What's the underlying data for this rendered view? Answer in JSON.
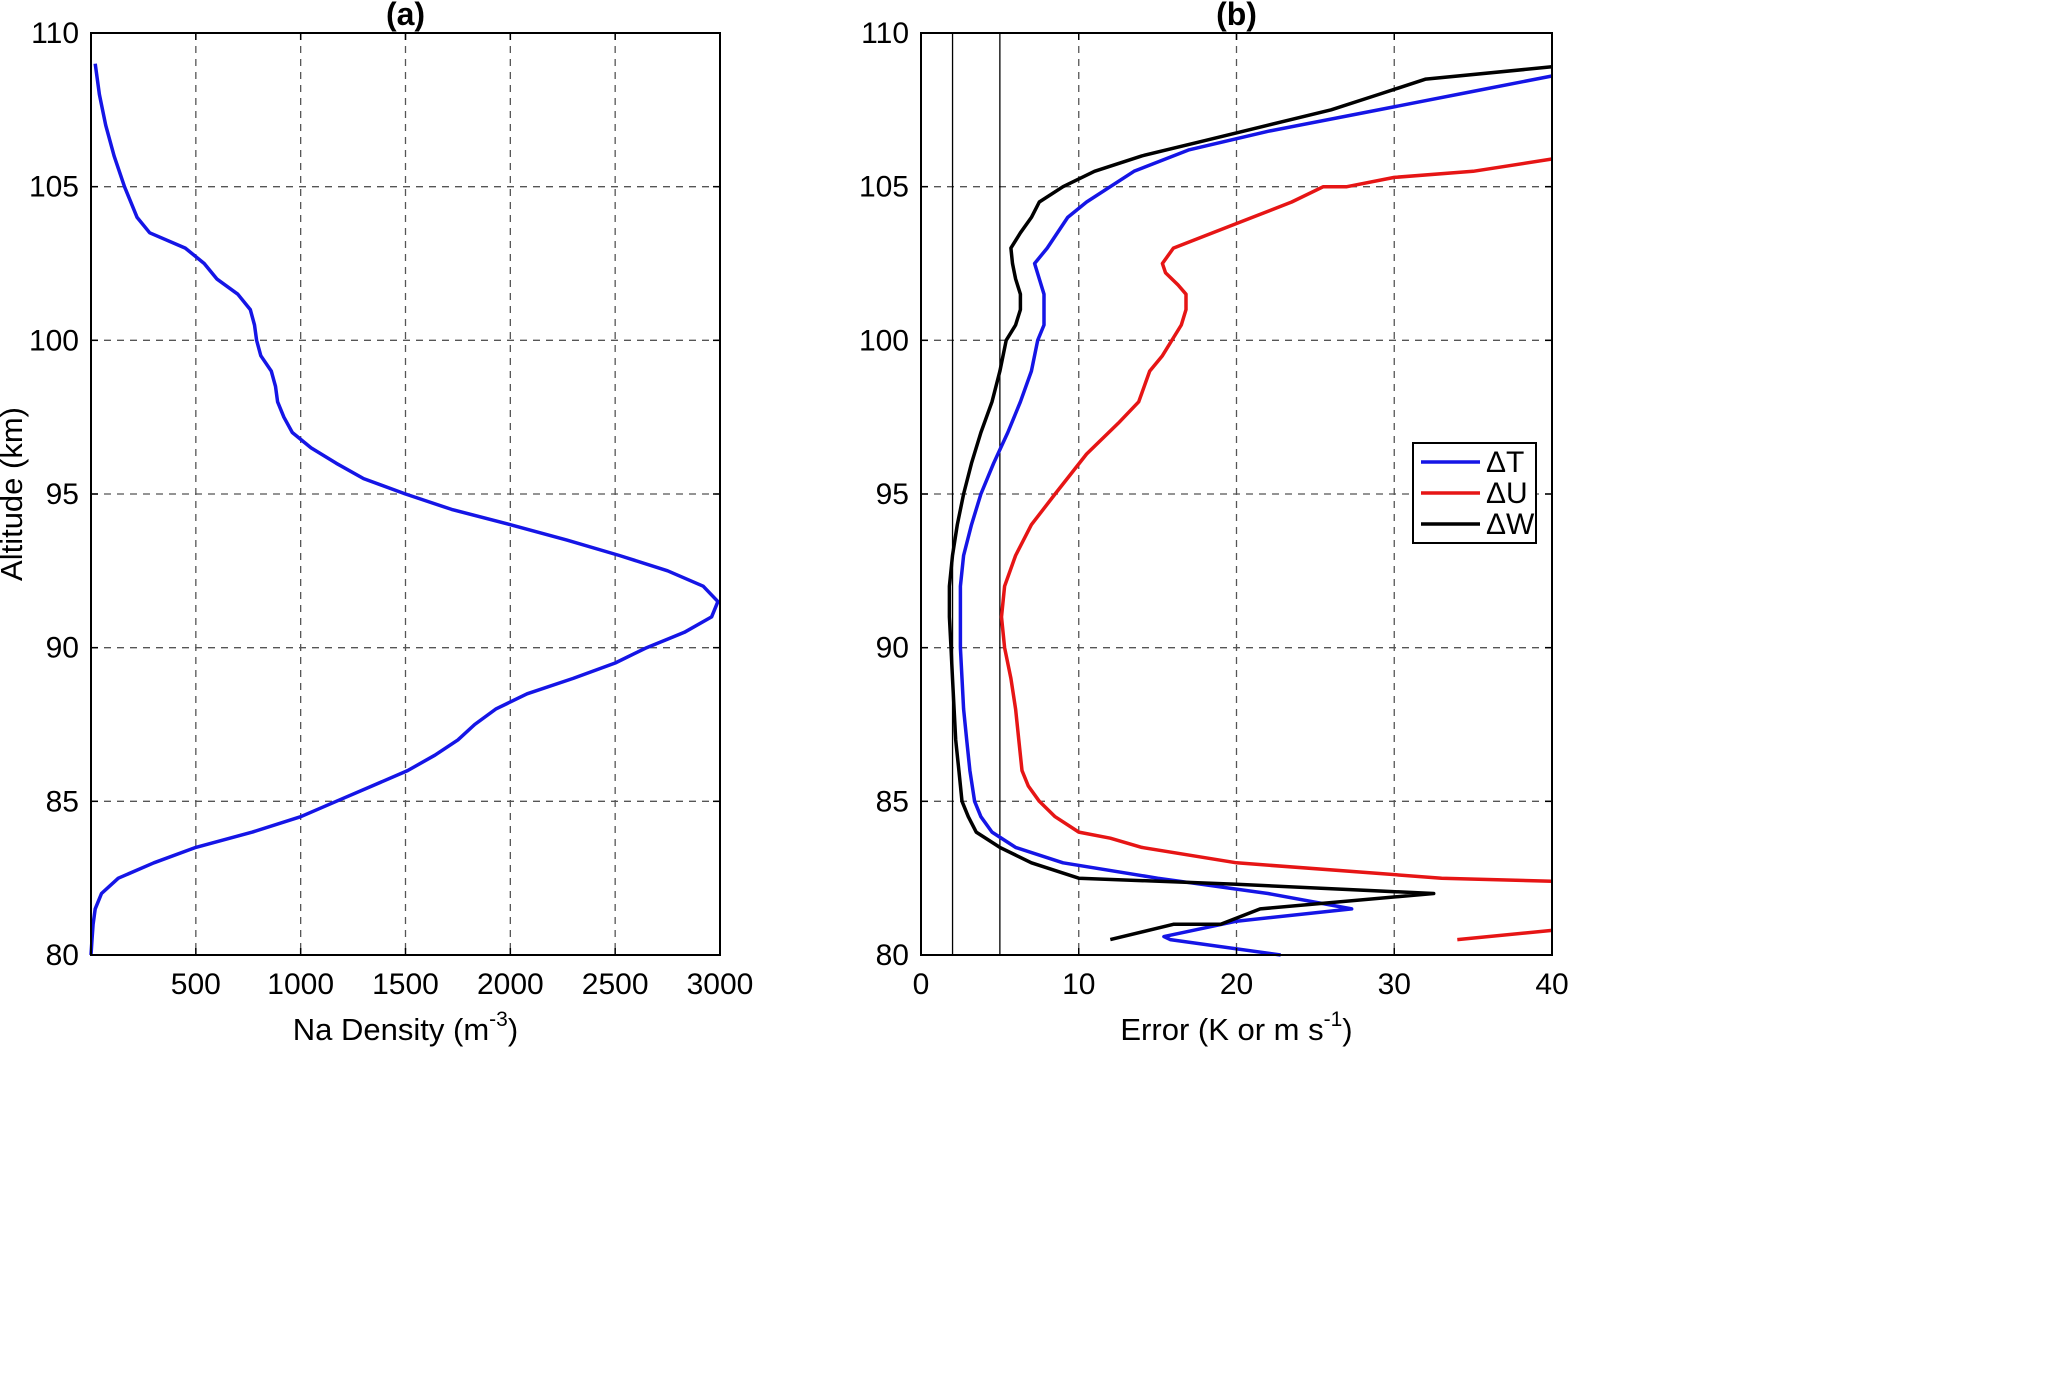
{
  "chart_data": [
    {
      "type": "line",
      "title": "(a)",
      "xlabel": "Na Density (m",
      "xlabel_sup": "-3",
      "xlabel_end": ")",
      "ylabel": "Altitude (km)",
      "xlim": [
        0,
        3000
      ],
      "ylim": [
        80,
        110
      ],
      "xticks": [
        500,
        1000,
        1500,
        2000,
        2500,
        3000
      ],
      "yticks": [
        80,
        85,
        90,
        95,
        100,
        105,
        110
      ],
      "grid": true,
      "series": [
        {
          "color": "#1515e6",
          "points": [
            [
              20,
              109
            ],
            [
              40,
              108
            ],
            [
              70,
              107
            ],
            [
              110,
              106
            ],
            [
              160,
              105
            ],
            [
              220,
              104
            ],
            [
              280,
              103.5
            ],
            [
              450,
              103
            ],
            [
              540,
              102.5
            ],
            [
              600,
              102
            ],
            [
              700,
              101.5
            ],
            [
              760,
              101
            ],
            [
              780,
              100.5
            ],
            [
              790,
              100
            ],
            [
              810,
              99.5
            ],
            [
              860,
              99
            ],
            [
              880,
              98.5
            ],
            [
              890,
              98
            ],
            [
              920,
              97.5
            ],
            [
              960,
              97
            ],
            [
              1050,
              96.5
            ],
            [
              1170,
              96
            ],
            [
              1300,
              95.5
            ],
            [
              1500,
              95
            ],
            [
              1720,
              94.5
            ],
            [
              2000,
              94
            ],
            [
              2270,
              93.5
            ],
            [
              2520,
              93
            ],
            [
              2750,
              92.5
            ],
            [
              2920,
              92
            ],
            [
              2990,
              91.5
            ],
            [
              2960,
              91
            ],
            [
              2830,
              90.5
            ],
            [
              2650,
              90
            ],
            [
              2500,
              89.5
            ],
            [
              2300,
              89
            ],
            [
              2080,
              88.5
            ],
            [
              1930,
              88
            ],
            [
              1830,
              87.5
            ],
            [
              1750,
              87
            ],
            [
              1640,
              86.5
            ],
            [
              1510,
              86
            ],
            [
              1340,
              85.5
            ],
            [
              1170,
              85
            ],
            [
              1000,
              84.5
            ],
            [
              770,
              84
            ],
            [
              500,
              83.5
            ],
            [
              300,
              83
            ],
            [
              130,
              82.5
            ],
            [
              50,
              82
            ],
            [
              20,
              81.5
            ],
            [
              10,
              81
            ],
            [
              5,
              80.5
            ],
            [
              0,
              80
            ]
          ]
        }
      ]
    },
    {
      "type": "line",
      "title": "(b)",
      "xlabel": "Error (K or m s",
      "xlabel_sup": "-1",
      "xlabel_end": ")",
      "ylabel": "",
      "xlim": [
        0,
        40
      ],
      "ylim": [
        80,
        110
      ],
      "xticks": [
        0,
        10,
        20,
        30,
        40
      ],
      "yticks": [
        80,
        85,
        90,
        95,
        100,
        105,
        110
      ],
      "grid": true,
      "vlines": [
        2,
        5
      ],
      "legend": {
        "position": "right",
        "entries": [
          {
            "label": "ΔT",
            "color": "#1515e6"
          },
          {
            "label": "ΔU",
            "color": "#e61515"
          },
          {
            "label": "ΔW",
            "color": "#000000"
          }
        ]
      },
      "series": [
        {
          "name": "ΔT",
          "color": "#1515e6",
          "points": [
            [
              22.8,
              80
            ],
            [
              15.8,
              80.5
            ],
            [
              15.4,
              80.6
            ],
            [
              20,
              81.1
            ],
            [
              27.3,
              81.5
            ],
            [
              22,
              82
            ],
            [
              15,
              82.5
            ],
            [
              9,
              83
            ],
            [
              6,
              83.5
            ],
            [
              4.5,
              84
            ],
            [
              3.8,
              84.5
            ],
            [
              3.4,
              85
            ],
            [
              3.1,
              86
            ],
            [
              2.9,
              87
            ],
            [
              2.7,
              88
            ],
            [
              2.6,
              89
            ],
            [
              2.5,
              90
            ],
            [
              2.5,
              91
            ],
            [
              2.5,
              92
            ],
            [
              2.7,
              93
            ],
            [
              3.2,
              94
            ],
            [
              3.8,
              95
            ],
            [
              4.6,
              96
            ],
            [
              5.5,
              97
            ],
            [
              6.3,
              98
            ],
            [
              7,
              99
            ],
            [
              7.4,
              100
            ],
            [
              7.8,
              100.5
            ],
            [
              7.8,
              101.5
            ],
            [
              7.5,
              102
            ],
            [
              7.2,
              102.5
            ],
            [
              8,
              103
            ],
            [
              9.3,
              104
            ],
            [
              10.5,
              104.5
            ],
            [
              13.5,
              105.5
            ],
            [
              17,
              106.2
            ],
            [
              22,
              106.8
            ],
            [
              27,
              107.3
            ],
            [
              31,
              107.7
            ],
            [
              35,
              108.1
            ],
            [
              40,
              108.6
            ]
          ]
        },
        {
          "name": "ΔU",
          "color": "#e61515",
          "points": [
            [
              34,
              80.5
            ],
            [
              40,
              80.8
            ],
            [
              null,
              null
            ],
            [
              40,
              82.4
            ],
            [
              33,
              82.5
            ],
            [
              20,
              83
            ],
            [
              14,
              83.5
            ],
            [
              12,
              83.8
            ],
            [
              10,
              84
            ],
            [
              8.5,
              84.5
            ],
            [
              7.5,
              85
            ],
            [
              6.8,
              85.5
            ],
            [
              6.4,
              86
            ],
            [
              6.2,
              87
            ],
            [
              6.0,
              88
            ],
            [
              5.7,
              89
            ],
            [
              5.3,
              90
            ],
            [
              5.1,
              91
            ],
            [
              5.3,
              92
            ],
            [
              6,
              93
            ],
            [
              7,
              94
            ],
            [
              8.5,
              95
            ],
            [
              10.5,
              96.3
            ],
            [
              12.5,
              97.3
            ],
            [
              13.8,
              98
            ],
            [
              14.5,
              99
            ],
            [
              15.3,
              99.5
            ],
            [
              16.5,
              100.5
            ],
            [
              16.8,
              101
            ],
            [
              16.8,
              101.5
            ],
            [
              16.3,
              101.8
            ],
            [
              15.5,
              102.2
            ],
            [
              15.3,
              102.5
            ],
            [
              16,
              103
            ],
            [
              18.5,
              103.5
            ],
            [
              21,
              104
            ],
            [
              23.5,
              104.5
            ],
            [
              25.5,
              105
            ],
            [
              27,
              105
            ],
            [
              30,
              105.3
            ],
            [
              35,
              105.5
            ],
            [
              40,
              105.9
            ]
          ]
        },
        {
          "name": "ΔW",
          "color": "#000000",
          "points": [
            [
              12,
              80.5
            ],
            [
              16,
              81
            ],
            [
              19,
              81
            ],
            [
              21.5,
              81.5
            ],
            [
              32.5,
              82
            ],
            [
              20,
              82.3
            ],
            [
              10,
              82.5
            ],
            [
              7,
              83
            ],
            [
              5,
              83.5
            ],
            [
              3.5,
              84
            ],
            [
              3,
              84.5
            ],
            [
              2.6,
              85
            ],
            [
              2.4,
              86
            ],
            [
              2.2,
              87
            ],
            [
              2.1,
              88
            ],
            [
              2,
              89
            ],
            [
              1.9,
              90
            ],
            [
              1.8,
              91
            ],
            [
              1.8,
              92
            ],
            [
              2,
              93
            ],
            [
              2.3,
              94
            ],
            [
              2.7,
              95
            ],
            [
              3.2,
              96
            ],
            [
              3.8,
              97
            ],
            [
              4.5,
              98
            ],
            [
              5,
              99
            ],
            [
              5.4,
              100
            ],
            [
              6,
              100.5
            ],
            [
              6.3,
              101
            ],
            [
              6.3,
              101.5
            ],
            [
              6,
              102
            ],
            [
              5.8,
              102.5
            ],
            [
              5.7,
              103
            ],
            [
              6.3,
              103.5
            ],
            [
              7,
              104
            ],
            [
              7.5,
              104.5
            ],
            [
              9,
              105
            ],
            [
              11,
              105.5
            ],
            [
              14,
              106
            ],
            [
              18,
              106.5
            ],
            [
              22,
              107
            ],
            [
              26,
              107.5
            ],
            [
              29,
              108
            ],
            [
              32,
              108.5
            ],
            [
              40,
              108.9
            ]
          ]
        }
      ]
    }
  ]
}
